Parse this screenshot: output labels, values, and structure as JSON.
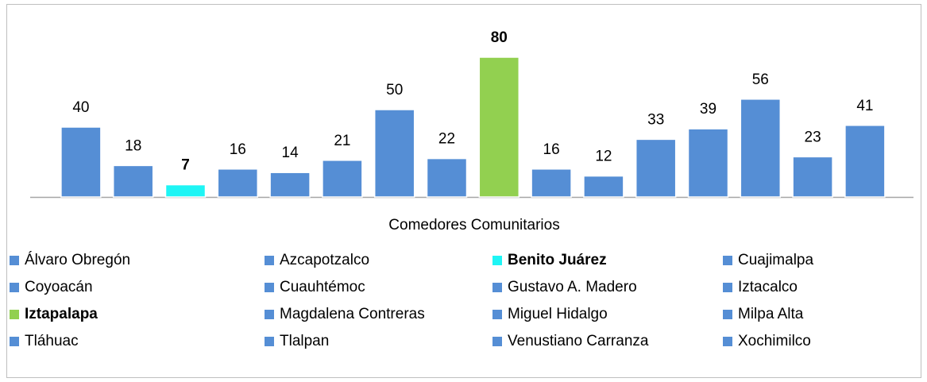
{
  "chart_data": {
    "type": "bar",
    "categories": [
      "Comedores Comunitarios"
    ],
    "ylim": [
      0,
      90
    ],
    "series": [
      {
        "name": "Álvaro Obregón",
        "color": "#558ed5",
        "values": [
          40
        ]
      },
      {
        "name": "Azcapotzalco",
        "color": "#558ed5",
        "values": [
          18
        ]
      },
      {
        "name": "Benito Juárez",
        "color": "#1ef5f5",
        "values": [
          7
        ],
        "bold": true
      },
      {
        "name": "Cuajimalpa",
        "color": "#558ed5",
        "values": [
          16
        ]
      },
      {
        "name": "Coyoacán",
        "color": "#558ed5",
        "values": [
          14
        ]
      },
      {
        "name": "Cuauhtémoc",
        "color": "#558ed5",
        "values": [
          21
        ]
      },
      {
        "name": "Gustavo A. Madero",
        "color": "#558ed5",
        "values": [
          50
        ]
      },
      {
        "name": "Iztacalco",
        "color": "#558ed5",
        "values": [
          22
        ]
      },
      {
        "name": "Iztapalapa",
        "color": "#92d050",
        "values": [
          80
        ],
        "bold": true
      },
      {
        "name": "Magdalena Contreras",
        "color": "#558ed5",
        "values": [
          16
        ]
      },
      {
        "name": "Miguel Hidalgo",
        "color": "#558ed5",
        "values": [
          12
        ]
      },
      {
        "name": "Milpa Alta",
        "color": "#558ed5",
        "values": [
          33
        ]
      },
      {
        "name": "Tláhuac",
        "color": "#558ed5",
        "values": [
          39
        ]
      },
      {
        "name": "Tlalpan",
        "color": "#558ed5",
        "values": [
          56
        ]
      },
      {
        "name": "Venustiano Carranza",
        "color": "#558ed5",
        "values": [
          23
        ]
      },
      {
        "name": "Xochimilco",
        "color": "#558ed5",
        "values": [
          41
        ]
      }
    ]
  }
}
